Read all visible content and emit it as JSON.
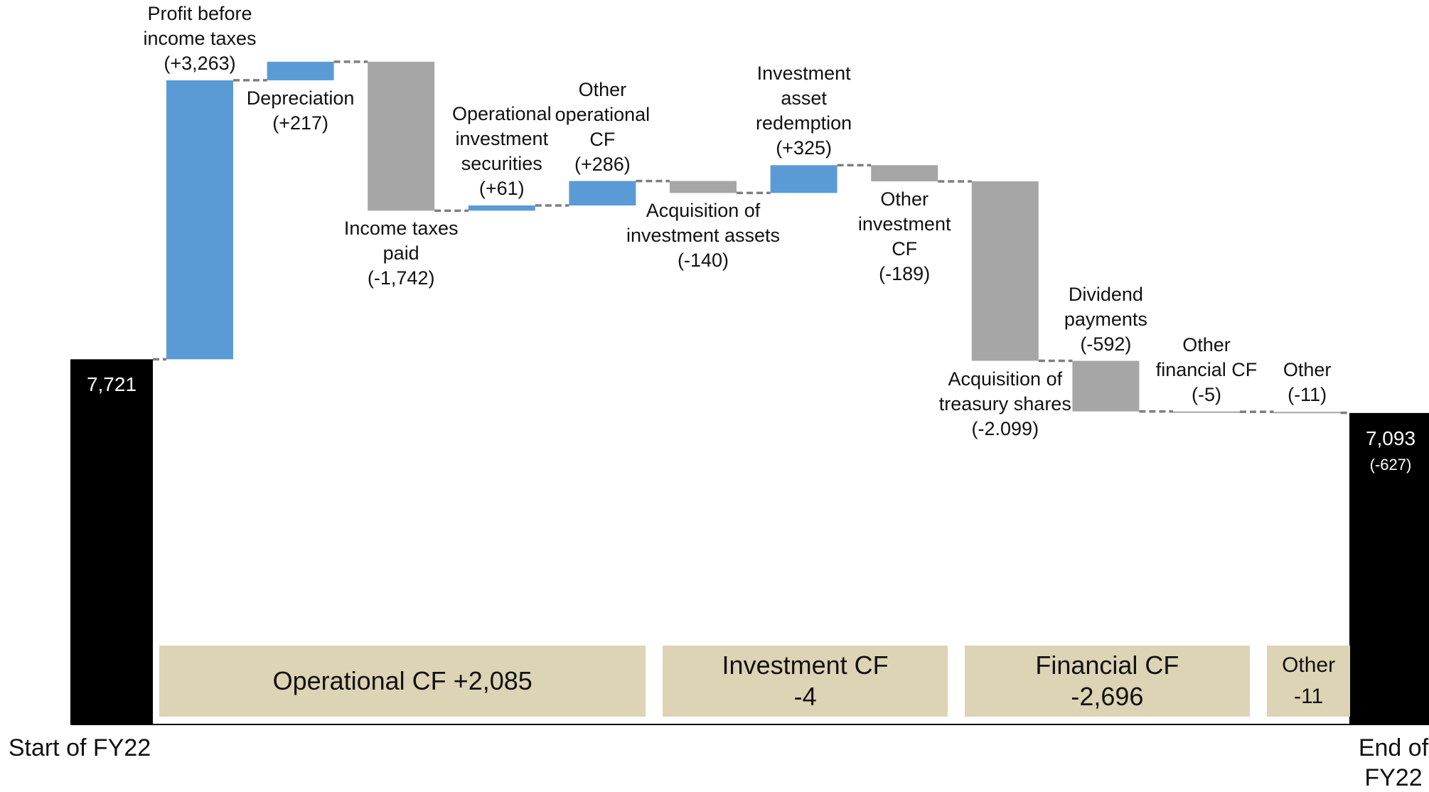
{
  "chart_data": {
    "type": "waterfall",
    "categories": [
      "Start of FY22",
      "Profit before\nincome taxes",
      "Depreciation",
      "Income taxes\npaid",
      "Operational\ninvestment\nsecurities",
      "Other\noperational\nCF",
      "Acquisition of\ninvestment assets",
      "Investment\nasset\nredemption",
      "Other\ninvestment\nCF",
      "Acquisition  of\ntreasury shares",
      "Dividend\npayments",
      "Other\nfinancial CF",
      "Other",
      "End of FY22"
    ],
    "values": [
      7721,
      3263,
      217,
      -1742,
      61,
      286,
      -140,
      325,
      -189,
      -2099,
      -592,
      -5,
      -11,
      7093
    ],
    "value_labels": [
      "7,721",
      "(+3,263)",
      "(+217)",
      "(-1,742)",
      "(+61)",
      "(+286)",
      "(-140)",
      "(+325)",
      "(-189)",
      "(-2.099)",
      "(-592)",
      "(-5)",
      "(-11)",
      "7,093"
    ],
    "measure": [
      "total",
      "relative",
      "relative",
      "relative",
      "relative",
      "relative",
      "relative",
      "relative",
      "relative",
      "relative",
      "relative",
      "relative",
      "relative",
      "total"
    ],
    "label_positions": [
      "inside",
      "above",
      "below",
      "below",
      "above",
      "above",
      "below",
      "above",
      "below",
      "below",
      "above",
      "above",
      "above",
      "inside"
    ],
    "colors": {
      "increase": "#5b9bd5",
      "decrease": "#a6a6a6",
      "total": "#000000"
    },
    "ylim": [
      3450,
      11000
    ],
    "annotations": [
      {
        "text": "(-627)"
      }
    ],
    "groups": [
      {
        "label": "Operational CF +2,085",
        "from": 1,
        "to": 5
      },
      {
        "label": "Investment CF\n-4",
        "from": 6,
        "to": 8
      },
      {
        "label": "Financial CF\n-2,696",
        "from": 9,
        "to": 11
      },
      {
        "label": "Other\n-11",
        "from": 12,
        "to": 12
      }
    ]
  }
}
